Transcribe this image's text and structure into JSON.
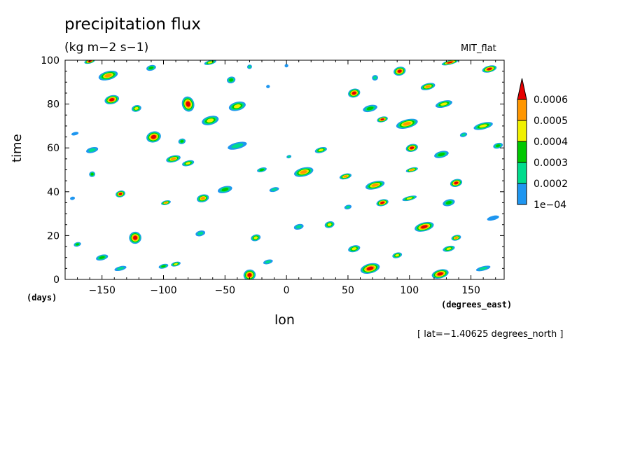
{
  "header": {
    "title": "precipitation flux",
    "units": "(kg m−2 s−1)",
    "model": "MIT_flat"
  },
  "footer": {
    "time_unit": "(days)",
    "x_unit": "(degrees_east)",
    "caption": "[ lat=−1.40625 degrees_north ]"
  },
  "chart_data": {
    "type": "heatmap",
    "title": "precipitation flux",
    "xlabel": "lon",
    "ylabel": "time",
    "xlim": [
      -180,
      177
    ],
    "ylim": [
      0,
      100
    ],
    "xticks": [
      -150,
      -100,
      -50,
      0,
      50,
      100,
      150
    ],
    "xtick_labels": [
      "−150",
      "−100",
      "−50",
      "0",
      "50",
      "100",
      "150"
    ],
    "yticks": [
      0,
      20,
      40,
      60,
      80,
      100
    ],
    "ytick_labels": [
      "0",
      "20",
      "40",
      "60",
      "80",
      "100"
    ],
    "colorbar": {
      "levels": [
        0.0001,
        0.0002,
        0.0003,
        0.0004,
        0.0005,
        0.0006
      ],
      "labels": [
        "1e−04",
        "0.0002",
        "0.0003",
        "0.0004",
        "0.0005",
        "0.0006"
      ],
      "colors": [
        "#1e96f0",
        "#00dc8c",
        "#00c800",
        "#f0f000",
        "#ff9600",
        "#e60000"
      ]
    },
    "features": [
      {
        "lon": -160,
        "time": 99.5,
        "lon_len": 9,
        "time_len": 2,
        "peak": 0.00062
      },
      {
        "lon": -145,
        "time": 93,
        "lon_len": 16,
        "time_len": 4,
        "peak": 0.00058
      },
      {
        "lon": -110,
        "time": 96.5,
        "lon_len": 8,
        "time_len": 2.5,
        "peak": 0.00032
      },
      {
        "lon": -62,
        "time": 99,
        "lon_len": 10,
        "time_len": 2,
        "peak": 0.00045
      },
      {
        "lon": -45,
        "time": 91,
        "lon_len": 7,
        "time_len": 3,
        "peak": 0.00036
      },
      {
        "lon": -30,
        "time": 97,
        "lon_len": 4,
        "time_len": 2,
        "peak": 0.00022
      },
      {
        "lon": -15,
        "time": 88,
        "lon_len": 3,
        "time_len": 1.5,
        "peak": 0.00015
      },
      {
        "lon": 0,
        "time": 97.5,
        "lon_len": 3,
        "time_len": 1.5,
        "peak": 0.00015
      },
      {
        "lon": 55,
        "time": 85,
        "lon_len": 10,
        "time_len": 4,
        "peak": 0.00065
      },
      {
        "lon": 72,
        "time": 92,
        "lon_len": 5,
        "time_len": 2.5,
        "peak": 0.00022
      },
      {
        "lon": 92,
        "time": 95,
        "lon_len": 10,
        "time_len": 4,
        "peak": 0.00062
      },
      {
        "lon": 115,
        "time": 88,
        "lon_len": 12,
        "time_len": 3,
        "peak": 0.0005
      },
      {
        "lon": 133,
        "time": 99,
        "lon_len": 14,
        "time_len": 2,
        "peak": 0.0006
      },
      {
        "lon": 165,
        "time": 96,
        "lon_len": 12,
        "time_len": 3,
        "peak": 0.00063
      },
      {
        "lon": -142,
        "time": 82,
        "lon_len": 12,
        "time_len": 4,
        "peak": 0.00062
      },
      {
        "lon": -122,
        "time": 78,
        "lon_len": 8,
        "time_len": 3,
        "peak": 0.00048
      },
      {
        "lon": -80,
        "time": 80,
        "lon_len": 10,
        "time_len": 7,
        "peak": 0.00068
      },
      {
        "lon": -62,
        "time": 72.5,
        "lon_len": 14,
        "time_len": 4,
        "peak": 0.00042
      },
      {
        "lon": -40,
        "time": 79,
        "lon_len": 14,
        "time_len": 4,
        "peak": 0.0004
      },
      {
        "lon": 68,
        "time": 78,
        "lon_len": 12,
        "time_len": 3,
        "peak": 0.00032
      },
      {
        "lon": 78,
        "time": 73,
        "lon_len": 9,
        "time_len": 2.5,
        "peak": 0.00062
      },
      {
        "lon": 98,
        "time": 71,
        "lon_len": 18,
        "time_len": 4,
        "peak": 0.0005
      },
      {
        "lon": 128,
        "time": 80,
        "lon_len": 14,
        "time_len": 3,
        "peak": 0.0004
      },
      {
        "lon": 160,
        "time": 70,
        "lon_len": 16,
        "time_len": 3,
        "peak": 0.00045
      },
      {
        "lon": 144,
        "time": 66,
        "lon_len": 6,
        "time_len": 2,
        "peak": 0.00022
      },
      {
        "lon": -108,
        "time": 65,
        "lon_len": 12,
        "time_len": 5,
        "peak": 0.00064
      },
      {
        "lon": -85,
        "time": 63,
        "lon_len": 6,
        "time_len": 2.5,
        "peak": 0.00032
      },
      {
        "lon": -172,
        "time": 66.5,
        "lon_len": 6,
        "time_len": 1.5,
        "peak": 0.00016
      },
      {
        "lon": -158,
        "time": 59,
        "lon_len": 10,
        "time_len": 2.5,
        "peak": 0.00028
      },
      {
        "lon": -92,
        "time": 55,
        "lon_len": 12,
        "time_len": 3,
        "peak": 0.00052
      },
      {
        "lon": -80,
        "time": 53,
        "lon_len": 10,
        "time_len": 2.5,
        "peak": 0.0004
      },
      {
        "lon": -20,
        "time": 50,
        "lon_len": 8,
        "time_len": 2,
        "peak": 0.00036
      },
      {
        "lon": 2,
        "time": 56,
        "lon_len": 4,
        "time_len": 1.5,
        "peak": 0.00021
      },
      {
        "lon": 14,
        "time": 49,
        "lon_len": 16,
        "time_len": 4,
        "peak": 0.00058
      },
      {
        "lon": 28,
        "time": 59,
        "lon_len": 10,
        "time_len": 2.5,
        "peak": 0.00042
      },
      {
        "lon": 48,
        "time": 47,
        "lon_len": 10,
        "time_len": 2.5,
        "peak": 0.0005
      },
      {
        "lon": 102,
        "time": 60,
        "lon_len": 10,
        "time_len": 3.5,
        "peak": 0.0006
      },
      {
        "lon": 102,
        "time": 50,
        "lon_len": 10,
        "time_len": 2,
        "peak": 0.0005
      },
      {
        "lon": 126,
        "time": 57,
        "lon_len": 12,
        "time_len": 3,
        "peak": 0.00032
      },
      {
        "lon": 172,
        "time": 61,
        "lon_len": 8,
        "time_len": 2.5,
        "peak": 0.00034
      },
      {
        "lon": 138,
        "time": 44,
        "lon_len": 10,
        "time_len": 3.5,
        "peak": 0.00062
      },
      {
        "lon": 72,
        "time": 43,
        "lon_len": 16,
        "time_len": 3.5,
        "peak": 0.0005
      },
      {
        "lon": -158,
        "time": 48,
        "lon_len": 5,
        "time_len": 2.5,
        "peak": 0.00035
      },
      {
        "lon": -135,
        "time": 39,
        "lon_len": 8,
        "time_len": 3,
        "peak": 0.00062
      },
      {
        "lon": -98,
        "time": 35,
        "lon_len": 8,
        "time_len": 2,
        "peak": 0.0005
      },
      {
        "lon": -68,
        "time": 37,
        "lon_len": 10,
        "time_len": 3.5,
        "peak": 0.0005
      },
      {
        "lon": -50,
        "time": 41,
        "lon_len": 12,
        "time_len": 3,
        "peak": 0.00036
      },
      {
        "lon": -10,
        "time": 41,
        "lon_len": 8,
        "time_len": 2,
        "peak": 0.00028
      },
      {
        "lon": 78,
        "time": 35,
        "lon_len": 10,
        "time_len": 3,
        "peak": 0.00064
      },
      {
        "lon": 50,
        "time": 33,
        "lon_len": 6,
        "time_len": 2,
        "peak": 0.00024
      },
      {
        "lon": 100,
        "time": 37,
        "lon_len": 12,
        "time_len": 2,
        "peak": 0.0004
      },
      {
        "lon": 132,
        "time": 35,
        "lon_len": 10,
        "time_len": 3,
        "peak": 0.00034
      },
      {
        "lon": -174,
        "time": 37,
        "lon_len": 4,
        "time_len": 1.5,
        "peak": 0.00016
      },
      {
        "lon": -123,
        "time": 19,
        "lon_len": 10,
        "time_len": 5.5,
        "peak": 0.00068
      },
      {
        "lon": -170,
        "time": 16,
        "lon_len": 6,
        "time_len": 2,
        "peak": 0.00035
      },
      {
        "lon": -70,
        "time": 21,
        "lon_len": 8,
        "time_len": 2.5,
        "peak": 0.00023
      },
      {
        "lon": -25,
        "time": 19,
        "lon_len": 8,
        "time_len": 3,
        "peak": 0.00045
      },
      {
        "lon": 10,
        "time": 24,
        "lon_len": 8,
        "time_len": 2.5,
        "peak": 0.00025
      },
      {
        "lon": 35,
        "time": 25,
        "lon_len": 8,
        "time_len": 3,
        "peak": 0.00045
      },
      {
        "lon": 112,
        "time": 24,
        "lon_len": 16,
        "time_len": 4,
        "peak": 0.00062
      },
      {
        "lon": 138,
        "time": 19,
        "lon_len": 8,
        "time_len": 2.5,
        "peak": 0.0005
      },
      {
        "lon": 132,
        "time": 14,
        "lon_len": 10,
        "time_len": 2.5,
        "peak": 0.00045
      },
      {
        "lon": 68,
        "time": 5,
        "lon_len": 16,
        "time_len": 4.5,
        "peak": 0.00062
      },
      {
        "lon": 55,
        "time": 14,
        "lon_len": 10,
        "time_len": 3,
        "peak": 0.0004
      },
      {
        "lon": 90,
        "time": 11,
        "lon_len": 8,
        "time_len": 2.5,
        "peak": 0.0004
      },
      {
        "lon": 125,
        "time": 2.5,
        "lon_len": 14,
        "time_len": 4,
        "peak": 0.00064
      },
      {
        "lon": 160,
        "time": 5,
        "lon_len": 12,
        "time_len": 2,
        "peak": 0.00025
      },
      {
        "lon": -30,
        "time": 2,
        "lon_len": 10,
        "time_len": 5,
        "peak": 0.00066
      },
      {
        "lon": -90,
        "time": 7,
        "lon_len": 8,
        "time_len": 2,
        "peak": 0.0004
      },
      {
        "lon": -100,
        "time": 6,
        "lon_len": 8,
        "time_len": 2,
        "peak": 0.00035
      },
      {
        "lon": -135,
        "time": 5,
        "lon_len": 10,
        "time_len": 2,
        "peak": 0.0002
      },
      {
        "lon": -150,
        "time": 10,
        "lon_len": 10,
        "time_len": 2.5,
        "peak": 0.00032
      },
      {
        "lon": -15,
        "time": 8,
        "lon_len": 8,
        "time_len": 2,
        "peak": 0.00024
      },
      {
        "lon": 168,
        "time": 28,
        "lon_len": 10,
        "time_len": 2,
        "peak": 0.00018
      },
      {
        "lon": -40,
        "time": 61,
        "lon_len": 16,
        "time_len": 3,
        "peak": 0.0002
      }
    ]
  }
}
